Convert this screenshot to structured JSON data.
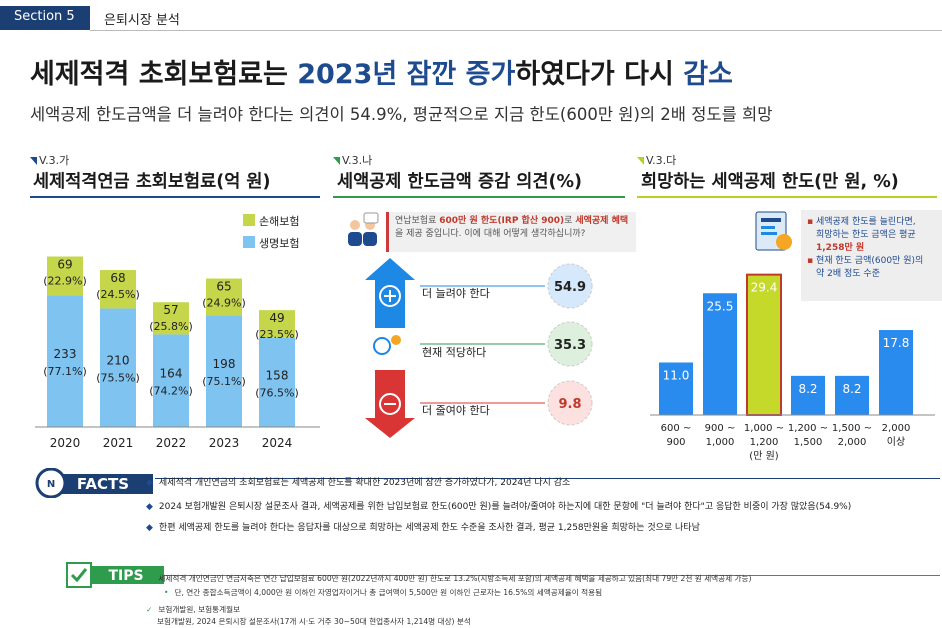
{
  "header": {
    "section": "Section 5",
    "section_name": "은퇴시장 분석"
  },
  "title": {
    "part1": "세제적격 초회보험료는 ",
    "hl1": "2023년 잠깐 증가",
    "part2": "하였다가 다시 ",
    "hl2": "감소"
  },
  "subtitle": "세액공제 한도금액을 더 늘려야 한다는 의견이 54.9%, 평균적으로 지금 한도(600만 원)의 2배 정도를 희망",
  "panels": [
    {
      "code": "V.3.가",
      "title": "세제적격연금 초회보험료(억 원)"
    },
    {
      "code": "V.3.나",
      "title": "세액공제 한도금액 증감 의견(%)"
    },
    {
      "code": "V.3.다",
      "title": "희망하는 세액공제 한도(만 원, %)"
    }
  ],
  "chart_data": [
    {
      "type": "bar",
      "stacked": true,
      "categories": [
        "2020",
        "2021",
        "2022",
        "2023",
        "2024"
      ],
      "series": [
        {
          "name": "생명보험",
          "values": [
            233,
            210,
            164,
            198,
            158
          ],
          "shares": [
            "(77.1%)",
            "(75.5%)",
            "(74.2%)",
            "(75.1%)",
            "(76.5%)"
          ],
          "color": "#7fc3f1"
        },
        {
          "name": "손해보험",
          "values": [
            69,
            68,
            57,
            65,
            49
          ],
          "shares": [
            "(22.9%)",
            "(24.5%)",
            "(25.8%)",
            "(24.9%)",
            "(23.5%)"
          ],
          "color": "#c5d64a"
        }
      ]
    },
    {
      "type": "bar",
      "categories": [
        "더 늘려야 한다",
        "현재 적당하다",
        "더 줄여야 한다"
      ],
      "values": [
        54.9,
        35.3,
        9.8
      ],
      "colors": [
        "#1e88e5",
        "#2e9b4d",
        "#d93535"
      ]
    },
    {
      "type": "bar",
      "categories": [
        "600 ~ 900",
        "900 ~ 1,000",
        "1,000 ~ 1,200",
        "1,200 ~ 1,500",
        "1,500 ~ 2,000",
        "2,000 이상"
      ],
      "xlabel": "(만 원)",
      "values": [
        11.0,
        25.5,
        29.4,
        8.2,
        8.2,
        17.8
      ],
      "value_labels": [
        "11.0",
        "25.5",
        "29.4",
        "8.2",
        "8.2",
        "17.8"
      ],
      "highlight_index": 2,
      "colors": {
        "bar": "#2a8bef",
        "highlight": "#c5d92a",
        "highlight_border": "#c0392b"
      }
    }
  ],
  "note": {
    "pre": "연납보험료 ",
    "b1": "600만 원 한도(IRP 합산 900)",
    "mid": "로 ",
    "b2": "세액공제 혜택",
    "post": "을 제공 중입니다. 이에 대해 어떻게 생각하십니까?"
  },
  "callout": {
    "line1": "세액공제 한도를 늘린다면,",
    "line2": "희망하는 한도 금액은 평균",
    "line3": "1,258만 원",
    "line4": "현재 한도 금액(600만 원)의",
    "line5": "약 2배 정도 수준"
  },
  "facts": {
    "badge": "FACTS",
    "items": [
      "세제적격 개인연금의 초회보험료는 세액공제 한도를 확대한 2023년에 잠깐 증가하였다가, 2024년 다시 감소",
      "2024 보험개발원 은퇴시장 설문조사 결과, 세액공제를 위한 납입보험료 한도(600만 원)를 늘려야/줄여야 하는지에 대한 문항에 \"더 늘려야 한다\"고 응답한 비중이 가장 많았음(54.9%)",
      "한편 세액공제 한도를 늘려야 한다는 응답자를 대상으로 희망하는 세액공제 한도 수준을 조사한 결과, 평균 1,258만원을 희망하는 것으로 나타남"
    ]
  },
  "tips": {
    "badge": "TIPS",
    "line1": "세제적격 개인연금인 연금저축은 연간 납입보험료 600만 원(2022년까지 400만 원) 한도로 13.2%(지방소득세 포함)의 세액공제 혜택을 제공하고 있음(최대 79만 2천 원 세액공제 가능)",
    "line2": "단, 연간 종합소득금액이 4,000만 원 이하인 자영업자이거나 총 급여액이 5,500만 원 이하인 근로자는 16.5%의 세액공제율이 적용됨",
    "source1": "보험개발원, 보험통계월보",
    "source2": "보험개발원, 2024 은퇴시장 설문조사(17개 시·도 거주 30~50대 현업종사자 1,214명 대상) 분석"
  }
}
